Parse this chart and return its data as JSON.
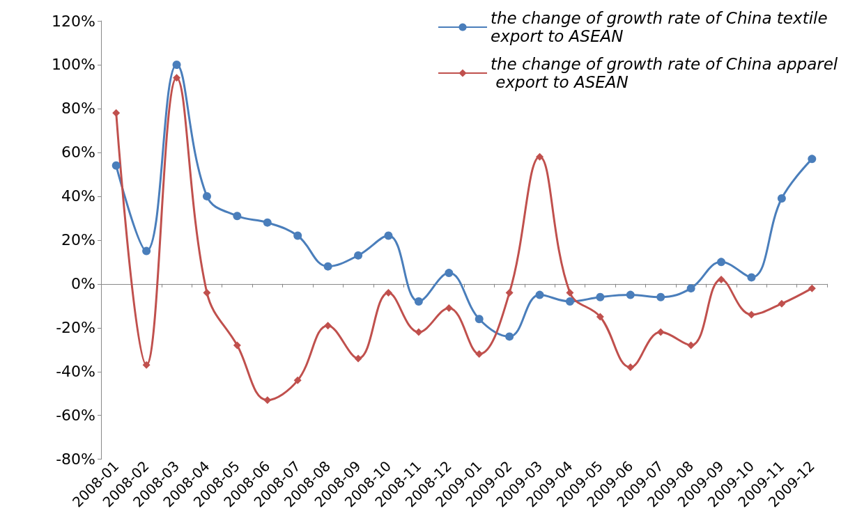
{
  "chart_data": {
    "type": "line",
    "categories": [
      "2008-01",
      "2008-02",
      "2008-03",
      "2008-04",
      "2008-05",
      "2008-06",
      "2008-07",
      "2008-08",
      "2008-09",
      "2008-10",
      "2008-11",
      "2008-12",
      "2009-01",
      "2009-02",
      "2009-03",
      "2009-04",
      "2009-05",
      "2009-06",
      "2009-07",
      "2009-08",
      "2009-09",
      "2009-10",
      "2009-11",
      "2009-12"
    ],
    "series": [
      {
        "name": "the change of growth rate of China textile export to ASEAN",
        "color": "#4a7ebb",
        "marker": "circle",
        "values": [
          54,
          15,
          100,
          40,
          31,
          28,
          22,
          8,
          13,
          22,
          -8,
          5,
          -16,
          -24,
          -5,
          -8,
          -6,
          -5,
          -6,
          -2,
          10,
          3,
          39,
          57
        ]
      },
      {
        "name": "the change of growth rate of China apparel export to ASEAN",
        "color": "#c0504d",
        "marker": "diamond",
        "values": [
          78,
          -37,
          94,
          -4,
          -28,
          -53,
          -44,
          -19,
          -34,
          -4,
          -22,
          -11,
          -32,
          -4,
          58,
          -4,
          -15,
          -38,
          -22,
          -28,
          2,
          -14,
          -9,
          -2
        ]
      }
    ],
    "ylim": [
      -80,
      120
    ],
    "yticks": [
      {
        "value": -80,
        "label": "-80%"
      },
      {
        "value": -60,
        "label": "-60%"
      },
      {
        "value": -40,
        "label": "-40%"
      },
      {
        "value": -20,
        "label": "-20%"
      },
      {
        "value": 0,
        "label": "0%"
      },
      {
        "value": 20,
        "label": "20%"
      },
      {
        "value": 40,
        "label": "40%"
      },
      {
        "value": 60,
        "label": "60%"
      },
      {
        "value": 80,
        "label": "80%"
      },
      {
        "value": 100,
        "label": "100%"
      },
      {
        "value": 120,
        "label": "120%"
      }
    ],
    "legend": "top right"
  }
}
